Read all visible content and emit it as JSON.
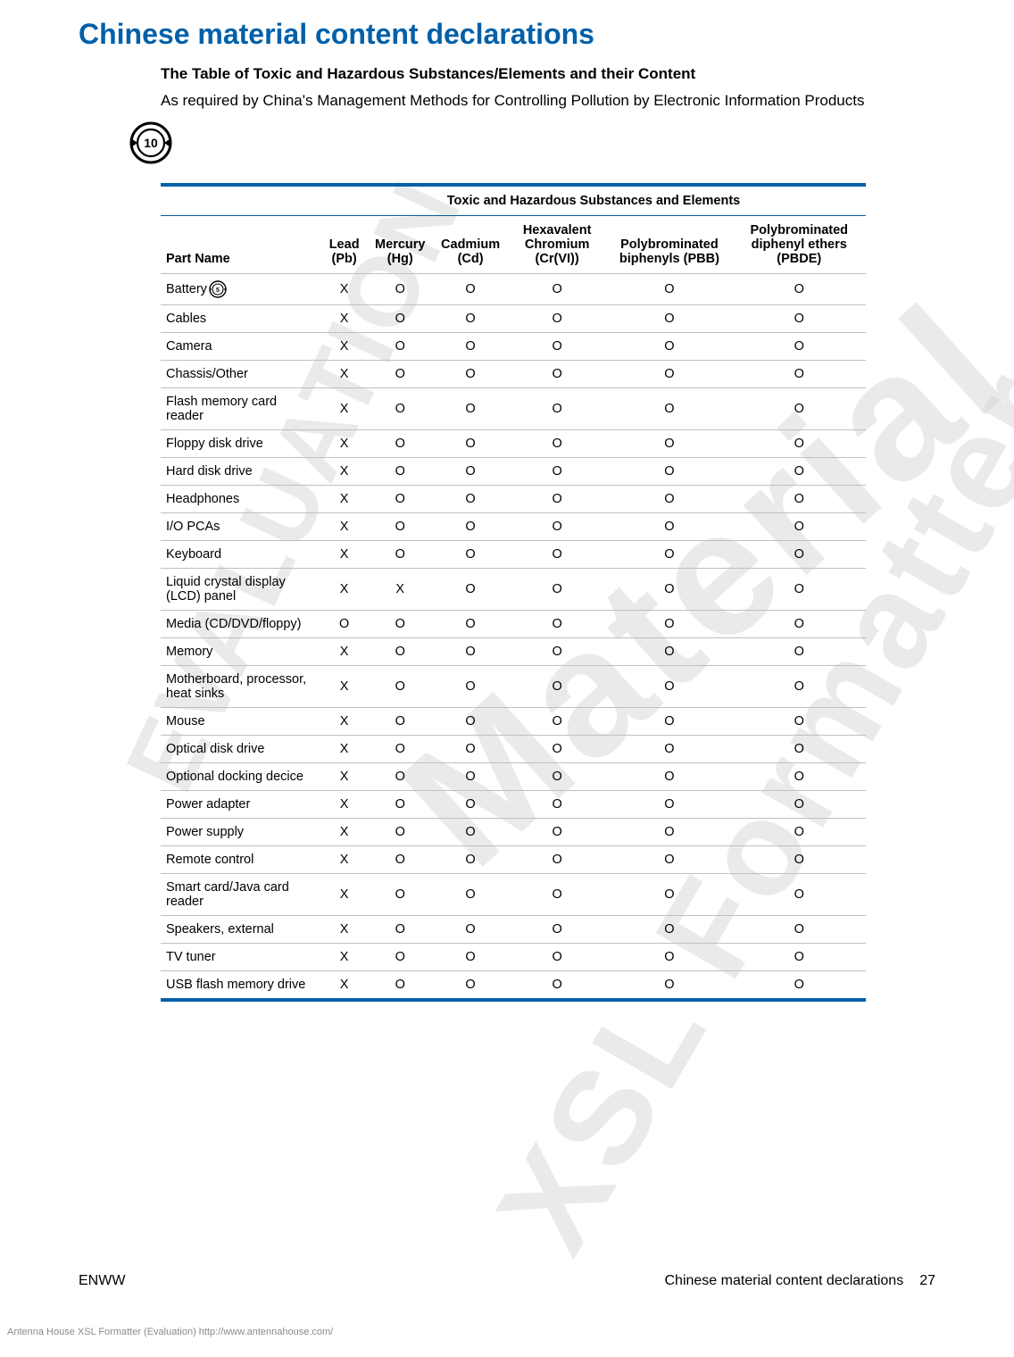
{
  "title": "Chinese material content declarations",
  "subtitle": "The Table of Toxic and Hazardous Substances/Elements and their Content",
  "description": "As required by China's Management Methods for Controlling Pollution by Electronic Information Products",
  "epup_main_label": "10",
  "epup_battery_label": "5",
  "table": {
    "group_header": "Toxic and Hazardous Substances and Elements",
    "columns": [
      "Part Name",
      "Lead (Pb)",
      "Mercury (Hg)",
      "Cadmium (Cd)",
      "Hexavalent Chromium (Cr(VI))",
      "Polybrominated biphenyls (PBB)",
      "Polybrominated diphenyl ethers (PBDE)"
    ],
    "rows": [
      {
        "name": "Battery",
        "icon": true,
        "v": [
          "X",
          "O",
          "O",
          "O",
          "O",
          "O"
        ]
      },
      {
        "name": "Cables",
        "v": [
          "X",
          "O",
          "O",
          "O",
          "O",
          "O"
        ]
      },
      {
        "name": "Camera",
        "v": [
          "X",
          "O",
          "O",
          "O",
          "O",
          "O"
        ]
      },
      {
        "name": "Chassis/Other",
        "v": [
          "X",
          "O",
          "O",
          "O",
          "O",
          "O"
        ]
      },
      {
        "name": "Flash memory card reader",
        "v": [
          "X",
          "O",
          "O",
          "O",
          "O",
          "O"
        ]
      },
      {
        "name": "Floppy disk drive",
        "v": [
          "X",
          "O",
          "O",
          "O",
          "O",
          "O"
        ]
      },
      {
        "name": "Hard disk drive",
        "v": [
          "X",
          "O",
          "O",
          "O",
          "O",
          "O"
        ]
      },
      {
        "name": "Headphones",
        "v": [
          "X",
          "O",
          "O",
          "O",
          "O",
          "O"
        ]
      },
      {
        "name": "I/O PCAs",
        "v": [
          "X",
          "O",
          "O",
          "O",
          "O",
          "O"
        ]
      },
      {
        "name": "Keyboard",
        "v": [
          "X",
          "O",
          "O",
          "O",
          "O",
          "O"
        ]
      },
      {
        "name": "Liquid crystal display (LCD) panel",
        "v": [
          "X",
          "X",
          "O",
          "O",
          "O",
          "O"
        ]
      },
      {
        "name": "Media (CD/DVD/floppy)",
        "v": [
          "O",
          "O",
          "O",
          "O",
          "O",
          "O"
        ]
      },
      {
        "name": "Memory",
        "v": [
          "X",
          "O",
          "O",
          "O",
          "O",
          "O"
        ]
      },
      {
        "name": "Motherboard, processor, heat sinks",
        "v": [
          "X",
          "O",
          "O",
          "O",
          "O",
          "O"
        ]
      },
      {
        "name": "Mouse",
        "v": [
          "X",
          "O",
          "O",
          "O",
          "O",
          "O"
        ]
      },
      {
        "name": "Optical disk drive",
        "v": [
          "X",
          "O",
          "O",
          "O",
          "O",
          "O"
        ]
      },
      {
        "name": "Optional docking decice",
        "v": [
          "X",
          "O",
          "O",
          "O",
          "O",
          "O"
        ]
      },
      {
        "name": "Power adapter",
        "v": [
          "X",
          "O",
          "O",
          "O",
          "O",
          "O"
        ]
      },
      {
        "name": "Power supply",
        "v": [
          "X",
          "O",
          "O",
          "O",
          "O",
          "O"
        ]
      },
      {
        "name": "Remote control",
        "v": [
          "X",
          "O",
          "O",
          "O",
          "O",
          "O"
        ]
      },
      {
        "name": "Smart card/Java card reader",
        "v": [
          "X",
          "O",
          "O",
          "O",
          "O",
          "O"
        ]
      },
      {
        "name": "Speakers, external",
        "v": [
          "X",
          "O",
          "O",
          "O",
          "O",
          "O"
        ]
      },
      {
        "name": "TV tuner",
        "v": [
          "X",
          "O",
          "O",
          "O",
          "O",
          "O"
        ]
      },
      {
        "name": "USB flash memory drive",
        "v": [
          "X",
          "O",
          "O",
          "O",
          "O",
          "O"
        ]
      }
    ]
  },
  "footer": {
    "left": "ENWW",
    "right_text": "Chinese material content declarations",
    "page_num": "27"
  },
  "formatter_note": "Antenna House XSL Formatter (Evaluation)  http://www.antennahouse.com/",
  "watermarks": {
    "wm1": "Material",
    "wm2": "EVALUATION",
    "wm3": "XSL Formatter"
  },
  "colors": {
    "title": "#0060a9",
    "rule": "#0060a9",
    "row_border": "#bfbfbf",
    "watermark": "#d9d9d9",
    "text": "#000000"
  }
}
